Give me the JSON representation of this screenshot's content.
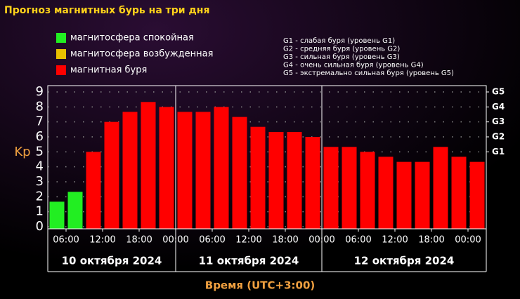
{
  "chart_data": {
    "type": "bar",
    "title": "Прогноз магнитных бурь на три дня",
    "ylabel": "Kp",
    "xlabel": "Время (UTC+3:00)",
    "values": [
      1.67,
      2.33,
      5,
      7,
      7.67,
      8.33,
      8,
      7.67,
      7.67,
      8,
      7.33,
      6.67,
      6.33,
      6.33,
      6,
      5.33,
      5.33,
      5,
      4.67,
      4.33,
      4.33,
      5.33,
      4.67,
      4.33
    ],
    "bar_colors": [
      "#22ee22",
      "#22ee22",
      "#ff0000",
      "#ff0000",
      "#ff0000",
      "#ff0000",
      "#ff0000",
      "#ff0000",
      "#ff0000",
      "#ff0000",
      "#ff0000",
      "#ff0000",
      "#ff0000",
      "#ff0000",
      "#ff0000",
      "#ff0000",
      "#ff0000",
      "#ff0000",
      "#ff0000",
      "#ff0000",
      "#ff0000",
      "#ff0000",
      "#ff0000",
      "#ff0000"
    ],
    "x_tick_labels": [
      "06:00",
      "12:00",
      "18:00",
      "00:00",
      "06:00",
      "12:00",
      "18:00",
      "00:00",
      "06:00",
      "12:00",
      "18:00",
      "00:00"
    ],
    "days": [
      "10 октября 2024",
      "11 октября 2024",
      "12 октября 2024"
    ],
    "ylim": [
      0,
      9
    ],
    "yticks": [
      0,
      1,
      2,
      3,
      4,
      5,
      6,
      7,
      8,
      9
    ],
    "y2ticks": [
      {
        "value": 5,
        "label": "G1"
      },
      {
        "value": 6,
        "label": "G2"
      },
      {
        "value": 7,
        "label": "G3"
      },
      {
        "value": 8,
        "label": "G4"
      },
      {
        "value": 9,
        "label": "G5"
      }
    ],
    "grid": true,
    "legend": [
      {
        "name": "магнитосфера спокойная",
        "color": "#22ee22"
      },
      {
        "name": "магнитосфера возбужденная",
        "color": "#e8c000"
      },
      {
        "name": "магнитная буря",
        "color": "#ff0000"
      }
    ],
    "g_scale_notes": [
      "G1 - слабая буря (уровень G1)",
      "G2 - средняя буря (уровень G2)",
      "G3 - сильная буря (уровень G3)",
      "G4 - очень сильная буря (уровень G4)",
      "G5 - экстремально сильная буря (уровень G5)"
    ]
  }
}
